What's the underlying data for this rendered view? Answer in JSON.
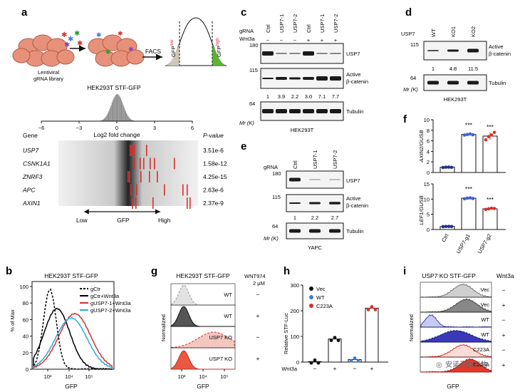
{
  "panels": {
    "a": {
      "letter": "a",
      "lentiviral": "Lentiviral\ngRNA library",
      "facs": "FACS",
      "gfp_low": "GFP",
      "gfp_low_sup": "low",
      "gfp_high": "GFP",
      "gfp_high_sup": "high",
      "title": "HEK293T STF-GFP",
      "hist_ticks": [
        "−6",
        "−3",
        "0",
        "3",
        "6"
      ],
      "hist_xlabel": "Log2 fold change",
      "gene_header": "Gene",
      "pval_header": "P-value",
      "genes": [
        {
          "name": "USP7",
          "pval": "3.51e-6"
        },
        {
          "name": "CSNK1A1",
          "pval": "1.58e-12"
        },
        {
          "name": "ZNRF3",
          "pval": "4.25e-15"
        },
        {
          "name": "APC",
          "pval": "2.63e-6"
        },
        {
          "name": "AXIN1",
          "pval": "2.37e-9"
        }
      ],
      "axis_low": "Low",
      "axis_gfp": "GFP",
      "axis_high": "High"
    },
    "b": {
      "letter": "b",
      "title": "HEK293T STF-GFP",
      "ylabel": "% of Max",
      "xlabel": "GFP",
      "yticks": [
        "0",
        "20",
        "40",
        "60",
        "80",
        "100"
      ],
      "xticks": [
        "10³",
        "10⁴",
        "10⁵"
      ],
      "legend": [
        {
          "label": "gCtr",
          "color": "#000000",
          "dashed": true
        },
        {
          "label": "gCtr+Wnt3a",
          "color": "#000000",
          "dashed": false
        },
        {
          "label": "gUSP7-1+Wnt3a",
          "color": "#d7302c",
          "dashed": false
        },
        {
          "label": "gUSP7-2+Wnt3a",
          "color": "#2aa7d9",
          "dashed": false
        }
      ]
    },
    "c": {
      "letter": "c",
      "grna_label": "gRNA",
      "wnt3a_label": "Wnt3a",
      "lanes": [
        "Ctrl",
        "USP7-1",
        "USP7-2",
        "Ctrl",
        "USP7-1",
        "USP7-2"
      ],
      "wnt3a": [
        "−",
        "−",
        "−",
        "+",
        "+",
        "+"
      ],
      "mw": [
        "180",
        "115",
        "64"
      ],
      "mr_label": "Mr (K)",
      "band1": "USP7",
      "band2": "Active\nβ-catenin",
      "band3": "Tubulin",
      "quant": [
        "1",
        "3.9",
        "2.2",
        "3.0",
        "7.1",
        "7.7"
      ],
      "cell": "HEK293T"
    },
    "d": {
      "letter": "d",
      "header": "USP7",
      "lanes": [
        "WT",
        "KO1",
        "KO2"
      ],
      "mw": [
        "115",
        "64"
      ],
      "mr_label": "Mr (K)",
      "band1": "Active\nβ-catenin",
      "band2": "Tubulin",
      "quant": [
        "1",
        "4.8",
        "11.5"
      ],
      "cell": "HEK293T"
    },
    "e": {
      "letter": "e",
      "grna_label": "gRNA",
      "lanes": [
        "Ctrl",
        "USP7-1",
        "USP7-2"
      ],
      "mw": [
        "180",
        "115",
        "64"
      ],
      "mr_label": "Mr (K)",
      "band1": "USP7",
      "band2": "Active\nβ-catenin",
      "band3": "Tubulin",
      "quant": [
        "1",
        "2.2",
        "2.7"
      ],
      "cell": "YAPC"
    },
    "f": {
      "letter": "f",
      "top_ylabel": "AXIN2/GUSB",
      "bottom_ylabel": "LEF1/GUSB",
      "top_yticks": [
        "0",
        "2",
        "4",
        "6",
        "8",
        "10"
      ],
      "bottom_yticks": [
        "0",
        "5",
        "10",
        "15"
      ],
      "categories": [
        "Ctrl",
        "USP7-g1",
        "USP7-g2"
      ],
      "stars": "***"
    },
    "g": {
      "letter": "g",
      "title": "HEK293T STF-GFP",
      "wnt974": "WNT974",
      "wnt974_conc": "2 μM",
      "ylabel": "Normalized",
      "xlabel": "GFP",
      "rows": [
        {
          "label": "WT",
          "sign": "−"
        },
        {
          "label": "WT",
          "sign": "+"
        },
        {
          "label": "USP7 KO",
          "sign": "−"
        },
        {
          "label": "USP7 KO",
          "sign": "+"
        }
      ],
      "xticks": [
        "10³",
        "10⁴",
        "10⁵"
      ]
    },
    "h": {
      "letter": "h",
      "ylabel": "Relative STF-Luc",
      "yticks": [
        "0",
        "100",
        "200",
        "300"
      ],
      "legend": [
        {
          "label": "Vec",
          "color": "#111111"
        },
        {
          "label": "WT",
          "color": "#3b7fd4"
        },
        {
          "label": "C223A",
          "color": "#d7302c"
        }
      ],
      "wnt3a_label": "Wnt3a",
      "wnt3a": [
        "−",
        "+",
        "−",
        "+"
      ]
    },
    "i": {
      "letter": "i",
      "title": "USP7 KO STF-GFP",
      "wnt3a_label": "Wnt3a",
      "ylabel": "Normalized",
      "xlabel": "GFP",
      "rows": [
        {
          "label": "Vec",
          "sign": "−"
        },
        {
          "label": "Vec",
          "sign": "+"
        },
        {
          "label": "WT",
          "sign": "−"
        },
        {
          "label": "WT",
          "sign": "+"
        },
        {
          "label": "C223A",
          "sign": "−"
        },
        {
          "label": "C223A",
          "sign": "+"
        }
      ]
    }
  },
  "chart_data": [
    {
      "type": "bar",
      "panel": "f-top",
      "categories": [
        "Ctrl",
        "USP7-g1",
        "USP7-g2"
      ],
      "values": [
        1.0,
        7.2,
        6.9
      ],
      "ylabel": "AXIN2/GUSB",
      "ylim": [
        0,
        10
      ],
      "points": [
        [
          0.95,
          1.0,
          1.02,
          0.98
        ],
        [
          7.1,
          7.2,
          7.3,
          7.15
        ],
        [
          6.2,
          6.8,
          7.1,
          7.6
        ]
      ]
    },
    {
      "type": "bar",
      "panel": "f-bottom",
      "categories": [
        "Ctrl",
        "USP7-g1",
        "USP7-g2"
      ],
      "values": [
        1.0,
        10.3,
        6.8
      ],
      "ylabel": "LEF1/GUSB",
      "ylim": [
        0,
        15
      ],
      "points": [
        [
          0.95,
          1.0,
          1.02,
          0.98
        ],
        [
          10.1,
          10.3,
          10.4,
          10.2
        ],
        [
          6.6,
          6.8,
          7.0,
          6.9
        ]
      ]
    },
    {
      "type": "bar",
      "panel": "h",
      "categories": [
        "Vec −",
        "Vec +",
        "WT −",
        "C223A +"
      ],
      "values": [
        2,
        90,
        10,
        210
      ],
      "ylabel": "Relative STF-Luc",
      "ylim": [
        0,
        300
      ],
      "colors": [
        "#111111",
        "#111111",
        "#3b7fd4",
        "#d7302c"
      ]
    }
  ],
  "watermark": "安诺洞校产物"
}
